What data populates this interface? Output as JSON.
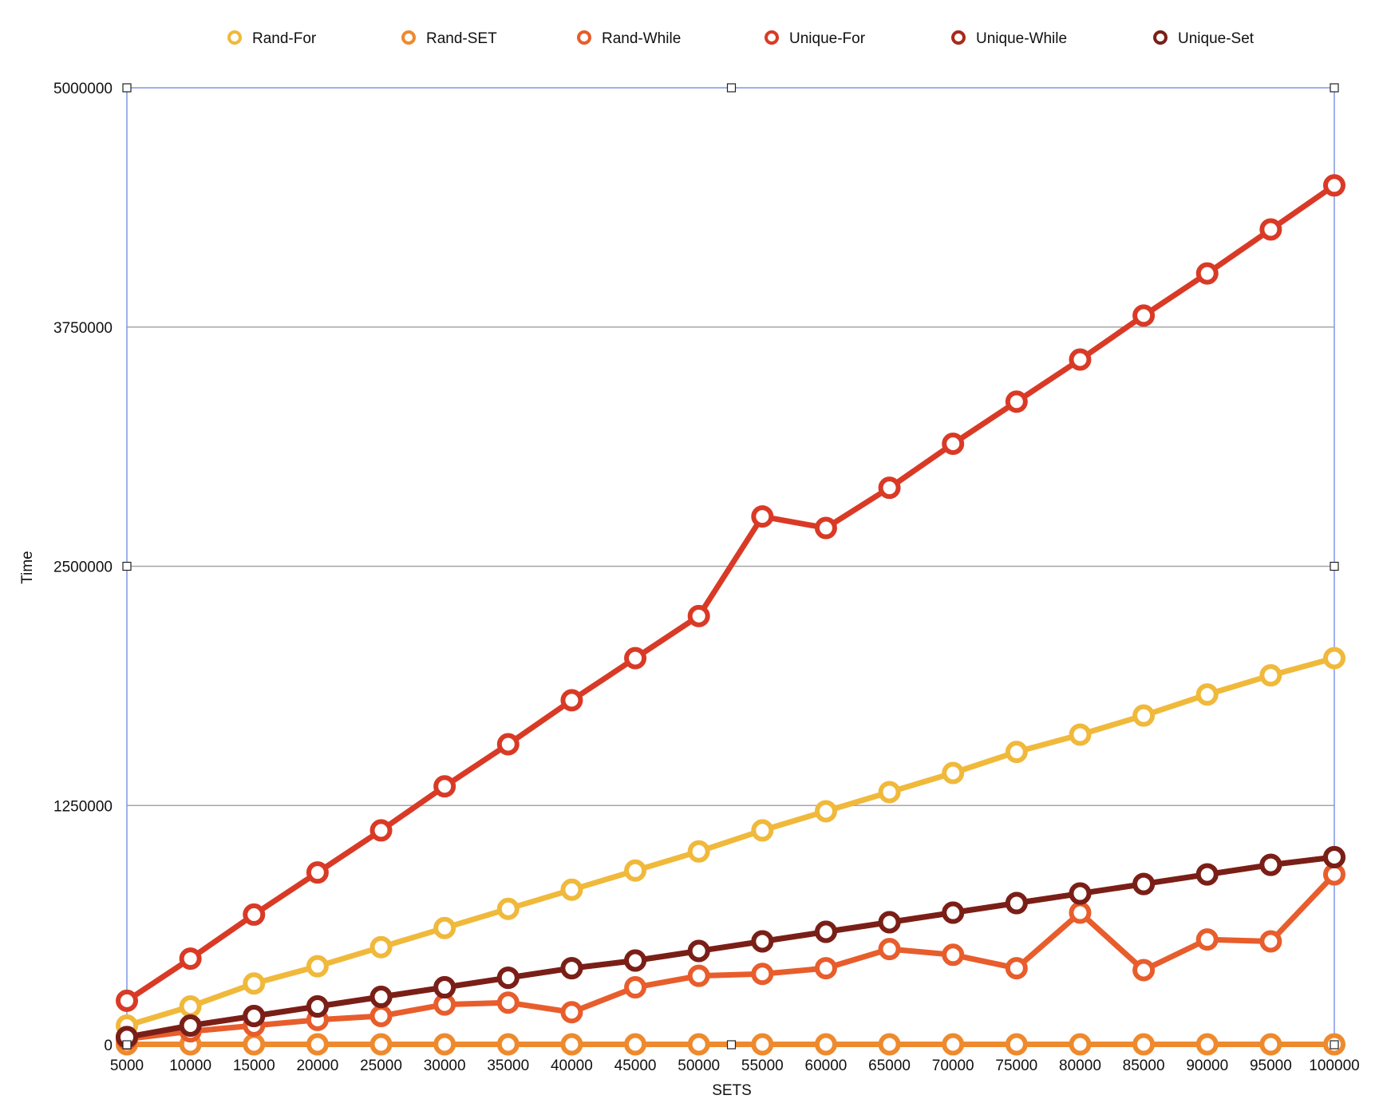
{
  "chart_data": {
    "type": "line",
    "xlabel": "SETS",
    "ylabel": "Time",
    "x": [
      5000,
      10000,
      15000,
      20000,
      25000,
      30000,
      35000,
      40000,
      45000,
      50000,
      55000,
      60000,
      65000,
      70000,
      75000,
      80000,
      85000,
      90000,
      95000,
      100000
    ],
    "ylim": [
      0,
      5000000
    ],
    "yticks": [
      0,
      1250000,
      2500000,
      3750000,
      5000000
    ],
    "grid": true,
    "legend_position": "top",
    "series": [
      {
        "name": "Rand-For",
        "color": "#F0B93B",
        "values": [
          100000,
          200000,
          320000,
          410000,
          510000,
          610000,
          710000,
          810000,
          910000,
          1010000,
          1120000,
          1220000,
          1320000,
          1420000,
          1530000,
          1620000,
          1720000,
          1830000,
          1930000,
          2020000
        ]
      },
      {
        "name": "Rand-SET",
        "color": "#EE8A2E",
        "values": [
          2000,
          2000,
          2000,
          2000,
          2000,
          2000,
          2000,
          2000,
          2000,
          2000,
          2000,
          2000,
          2000,
          2000,
          2000,
          2000,
          2000,
          2000,
          2000,
          2000
        ]
      },
      {
        "name": "Rand-While",
        "color": "#E85D2C",
        "values": [
          30000,
          70000,
          100000,
          130000,
          150000,
          210000,
          220000,
          170000,
          300000,
          360000,
          370000,
          400000,
          500000,
          470000,
          400000,
          690000,
          390000,
          550000,
          540000,
          890000
        ]
      },
      {
        "name": "Unique-For",
        "color": "#D93A26",
        "values": [
          230000,
          450000,
          680000,
          900000,
          1120000,
          1350000,
          1570000,
          1800000,
          2020000,
          2240000,
          2760000,
          2700000,
          2910000,
          3140000,
          3360000,
          3580000,
          3810000,
          4030000,
          4260000,
          4490000
        ]
      },
      {
        "name": "Unique-While",
        "color": "#A9291C",
        "values": [
          40000,
          100000,
          150000,
          200000,
          250000,
          300000,
          350000,
          400000,
          440000,
          490000,
          540000,
          590000,
          640000,
          690000,
          740000,
          790000,
          840000,
          890000,
          940000,
          980000
        ]
      },
      {
        "name": "Unique-Set",
        "color": "#7A1F17",
        "values": [
          40000,
          100000,
          150000,
          200000,
          250000,
          300000,
          350000,
          400000,
          440000,
          490000,
          540000,
          590000,
          640000,
          690000,
          740000,
          790000,
          840000,
          890000,
          940000,
          980000
        ]
      }
    ]
  }
}
